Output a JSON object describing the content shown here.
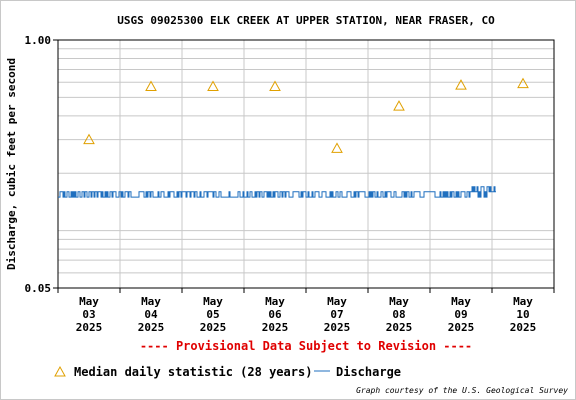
{
  "chart_data": {
    "type": "scatter",
    "title": "USGS 09025300 ELK CREEK AT UPPER STATION, NEAR FRASER, CO",
    "ylabel": "Discharge, cubic feet per second",
    "xlabel": "",
    "yscale": "log",
    "ylim": [
      0.05,
      1.0
    ],
    "ytick_labels": [
      "1.00",
      "0.05"
    ],
    "x_range_days": [
      0,
      8
    ],
    "day_ticks": [
      {
        "day": 0.5,
        "lines": [
          "May",
          "03",
          "2025"
        ]
      },
      {
        "day": 1.5,
        "lines": [
          "May",
          "04",
          "2025"
        ]
      },
      {
        "day": 2.5,
        "lines": [
          "May",
          "05",
          "2025"
        ]
      },
      {
        "day": 3.5,
        "lines": [
          "May",
          "06",
          "2025"
        ]
      },
      {
        "day": 4.5,
        "lines": [
          "May",
          "07",
          "2025"
        ]
      },
      {
        "day": 5.5,
        "lines": [
          "May",
          "08",
          "2025"
        ]
      },
      {
        "day": 6.5,
        "lines": [
          "May",
          "09",
          "2025"
        ]
      },
      {
        "day": 7.5,
        "lines": [
          "May",
          "10",
          "2025"
        ]
      }
    ],
    "grid": true,
    "series": [
      {
        "name": "Median daily statistic (28 years)",
        "kind": "triangle-markers",
        "color": "#e0a000",
        "points": [
          {
            "day": 0.5,
            "value": 0.3
          },
          {
            "day": 1.5,
            "value": 0.57
          },
          {
            "day": 2.5,
            "value": 0.57
          },
          {
            "day": 3.5,
            "value": 0.57
          },
          {
            "day": 4.5,
            "value": 0.27
          },
          {
            "day": 5.5,
            "value": 0.45
          },
          {
            "day": 6.5,
            "value": 0.58
          },
          {
            "day": 7.5,
            "value": 0.59
          }
        ]
      },
      {
        "name": "Discharge",
        "kind": "line",
        "color": "#1f6fbf",
        "x_end_day": 7.06,
        "base_value": 0.15,
        "upper_value": 0.16,
        "late_upper_value": 0.17,
        "late_start_day": 6.65
      }
    ]
  },
  "notice": "---- Provisional Data Subject to Revision ----",
  "notice_color": "#e00000",
  "legend": {
    "median_label": "Median daily statistic (28 years)",
    "discharge_label": "Discharge"
  },
  "credit": "Graph courtesy of the U.S. Geological Survey"
}
